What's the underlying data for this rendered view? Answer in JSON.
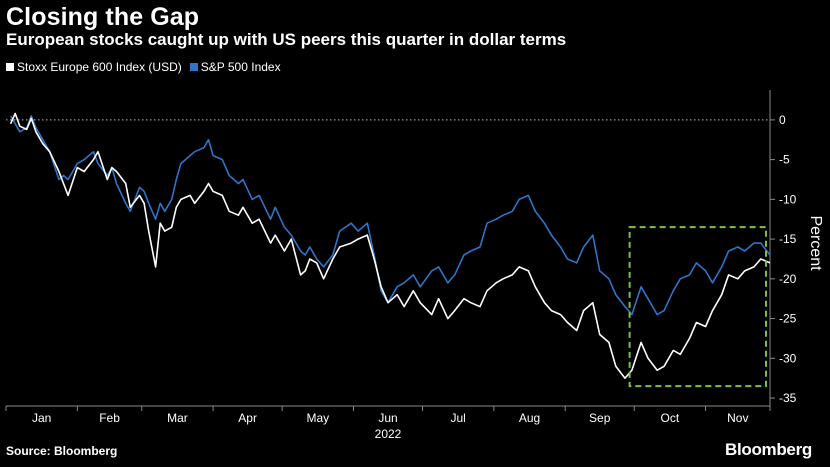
{
  "header": {
    "title": "Closing the Gap",
    "subtitle": "European stocks caught up with US peers this quarter in dollar terms"
  },
  "footer": {
    "source": "Source: Bloomberg",
    "brand": "Bloomberg"
  },
  "colors": {
    "background": "#000000",
    "stoxx": "#ffffff",
    "sp500": "#2f74c8",
    "highlight_box": "#7cc242",
    "axis": "#8a8a8a"
  },
  "chart_data": {
    "type": "line",
    "title": "Closing the Gap",
    "subtitle": "European stocks caught up with US peers this quarter in dollar terms",
    "xlabel": "2022",
    "ylabel": "Percent",
    "x_tick_labels": [
      "Jan",
      "Feb",
      "Mar",
      "Apr",
      "May",
      "Jun",
      "Jul",
      "Aug",
      "Sep",
      "Oct",
      "Nov"
    ],
    "y_ticks": [
      0,
      -5,
      -10,
      -15,
      -20,
      -25,
      -30,
      -35
    ],
    "ylim": [
      -36,
      2.5
    ],
    "xlim": [
      "2022-01-01",
      "2022-11-29"
    ],
    "y_axis_position": "right",
    "grid": false,
    "zero_line": "dotted",
    "legend_position": "top-left",
    "highlight_box": {
      "x_range": [
        "2022-09-29",
        "2022-11-29"
      ],
      "y_range": [
        -33.5,
        -13.5
      ]
    },
    "series": [
      {
        "name": "Stoxx Europe 600 Index (USD)",
        "color": "#ffffff",
        "points": [
          [
            "2022-01-03",
            -0.5
          ],
          [
            "2022-01-05",
            0.8
          ],
          [
            "2022-01-07",
            -0.8
          ],
          [
            "2022-01-10",
            -1.2
          ],
          [
            "2022-01-12",
            0.2
          ],
          [
            "2022-01-14",
            -1.5
          ],
          [
            "2022-01-17",
            -3.0
          ],
          [
            "2022-01-20",
            -4.0
          ],
          [
            "2022-01-24",
            -6.5
          ],
          [
            "2022-01-26",
            -8.0
          ],
          [
            "2022-01-28",
            -9.5
          ],
          [
            "2022-02-01",
            -6.0
          ],
          [
            "2022-02-04",
            -6.5
          ],
          [
            "2022-02-08",
            -5.0
          ],
          [
            "2022-02-10",
            -4.0
          ],
          [
            "2022-02-14",
            -7.5
          ],
          [
            "2022-02-16",
            -6.0
          ],
          [
            "2022-02-18",
            -6.5
          ],
          [
            "2022-02-22",
            -8.0
          ],
          [
            "2022-02-24",
            -11.0
          ],
          [
            "2022-02-28",
            -9.5
          ],
          [
            "2022-03-02",
            -10.5
          ],
          [
            "2022-03-04",
            -14.0
          ],
          [
            "2022-03-07",
            -18.5
          ],
          [
            "2022-03-09",
            -13.0
          ],
          [
            "2022-03-11",
            -14.0
          ],
          [
            "2022-03-14",
            -13.5
          ],
          [
            "2022-03-16",
            -11.0
          ],
          [
            "2022-03-18",
            -10.0
          ],
          [
            "2022-03-22",
            -9.5
          ],
          [
            "2022-03-24",
            -10.5
          ],
          [
            "2022-03-28",
            -9.0
          ],
          [
            "2022-03-30",
            -8.0
          ],
          [
            "2022-04-01",
            -9.0
          ],
          [
            "2022-04-05",
            -9.5
          ],
          [
            "2022-04-08",
            -11.5
          ],
          [
            "2022-04-12",
            -12.0
          ],
          [
            "2022-04-14",
            -11.0
          ],
          [
            "2022-04-18",
            -13.0
          ],
          [
            "2022-04-21",
            -12.5
          ],
          [
            "2022-04-26",
            -15.5
          ],
          [
            "2022-04-28",
            -14.5
          ],
          [
            "2022-05-02",
            -16.5
          ],
          [
            "2022-05-05",
            -15.0
          ],
          [
            "2022-05-09",
            -19.5
          ],
          [
            "2022-05-11",
            -19.0
          ],
          [
            "2022-05-13",
            -17.5
          ],
          [
            "2022-05-16",
            -18.0
          ],
          [
            "2022-05-19",
            -20.0
          ],
          [
            "2022-05-23",
            -17.5
          ],
          [
            "2022-05-26",
            -16.0
          ],
          [
            "2022-05-31",
            -15.5
          ],
          [
            "2022-06-03",
            -15.0
          ],
          [
            "2022-06-07",
            -14.5
          ],
          [
            "2022-06-10",
            -17.5
          ],
          [
            "2022-06-13",
            -21.0
          ],
          [
            "2022-06-16",
            -23.0
          ],
          [
            "2022-06-20",
            -22.0
          ],
          [
            "2022-06-23",
            -23.5
          ],
          [
            "2022-06-27",
            -21.5
          ],
          [
            "2022-06-30",
            -23.0
          ],
          [
            "2022-07-05",
            -24.5
          ],
          [
            "2022-07-08",
            -22.5
          ],
          [
            "2022-07-12",
            -25.0
          ],
          [
            "2022-07-15",
            -24.0
          ],
          [
            "2022-07-19",
            -22.5
          ],
          [
            "2022-07-22",
            -23.0
          ],
          [
            "2022-07-26",
            -23.5
          ],
          [
            "2022-07-29",
            -21.5
          ],
          [
            "2022-08-02",
            -20.5
          ],
          [
            "2022-08-05",
            -20.0
          ],
          [
            "2022-08-09",
            -19.5
          ],
          [
            "2022-08-12",
            -18.5
          ],
          [
            "2022-08-16",
            -19.0
          ],
          [
            "2022-08-19",
            -21.0
          ],
          [
            "2022-08-23",
            -23.0
          ],
          [
            "2022-08-26",
            -24.0
          ],
          [
            "2022-08-30",
            -24.5
          ],
          [
            "2022-09-02",
            -25.5
          ],
          [
            "2022-09-06",
            -26.5
          ],
          [
            "2022-09-09",
            -24.0
          ],
          [
            "2022-09-13",
            -23.0
          ],
          [
            "2022-09-16",
            -27.0
          ],
          [
            "2022-09-20",
            -28.0
          ],
          [
            "2022-09-23",
            -31.0
          ],
          [
            "2022-09-27",
            -32.5
          ],
          [
            "2022-09-30",
            -31.5
          ],
          [
            "2022-10-04",
            -28.0
          ],
          [
            "2022-10-07",
            -30.0
          ],
          [
            "2022-10-11",
            -31.5
          ],
          [
            "2022-10-14",
            -31.0
          ],
          [
            "2022-10-18",
            -29.0
          ],
          [
            "2022-10-21",
            -29.5
          ],
          [
            "2022-10-25",
            -27.5
          ],
          [
            "2022-10-28",
            -25.5
          ],
          [
            "2022-11-01",
            -26.0
          ],
          [
            "2022-11-04",
            -24.0
          ],
          [
            "2022-11-08",
            -22.0
          ],
          [
            "2022-11-11",
            -19.5
          ],
          [
            "2022-11-15",
            -20.0
          ],
          [
            "2022-11-18",
            -19.0
          ],
          [
            "2022-11-22",
            -18.5
          ],
          [
            "2022-11-25",
            -17.5
          ],
          [
            "2022-11-29",
            -18.0
          ]
        ]
      },
      {
        "name": "S&P 500 Index",
        "color": "#2f74c8",
        "points": [
          [
            "2022-01-03",
            0.5
          ],
          [
            "2022-01-05",
            -0.5
          ],
          [
            "2022-01-07",
            -1.5
          ],
          [
            "2022-01-10",
            -1.0
          ],
          [
            "2022-01-12",
            0.5
          ],
          [
            "2022-01-14",
            -1.0
          ],
          [
            "2022-01-17",
            -2.5
          ],
          [
            "2022-01-20",
            -4.0
          ],
          [
            "2022-01-24",
            -7.5
          ],
          [
            "2022-01-26",
            -7.0
          ],
          [
            "2022-01-28",
            -7.5
          ],
          [
            "2022-02-01",
            -5.5
          ],
          [
            "2022-02-04",
            -5.0
          ],
          [
            "2022-02-08",
            -4.0
          ],
          [
            "2022-02-10",
            -5.5
          ],
          [
            "2022-02-14",
            -7.0
          ],
          [
            "2022-02-16",
            -6.0
          ],
          [
            "2022-02-18",
            -8.0
          ],
          [
            "2022-02-22",
            -10.5
          ],
          [
            "2022-02-24",
            -11.5
          ],
          [
            "2022-02-28",
            -8.5
          ],
          [
            "2022-03-02",
            -9.0
          ],
          [
            "2022-03-04",
            -10.5
          ],
          [
            "2022-03-07",
            -12.5
          ],
          [
            "2022-03-09",
            -10.5
          ],
          [
            "2022-03-11",
            -11.5
          ],
          [
            "2022-03-14",
            -10.0
          ],
          [
            "2022-03-16",
            -7.5
          ],
          [
            "2022-03-18",
            -5.5
          ],
          [
            "2022-03-22",
            -4.5
          ],
          [
            "2022-03-24",
            -4.0
          ],
          [
            "2022-03-28",
            -3.5
          ],
          [
            "2022-03-30",
            -2.5
          ],
          [
            "2022-04-01",
            -4.5
          ],
          [
            "2022-04-05",
            -5.0
          ],
          [
            "2022-04-08",
            -7.0
          ],
          [
            "2022-04-12",
            -8.0
          ],
          [
            "2022-04-14",
            -7.5
          ],
          [
            "2022-04-18",
            -10.0
          ],
          [
            "2022-04-21",
            -9.5
          ],
          [
            "2022-04-26",
            -12.5
          ],
          [
            "2022-04-28",
            -11.0
          ],
          [
            "2022-05-02",
            -13.5
          ],
          [
            "2022-05-05",
            -14.5
          ],
          [
            "2022-05-09",
            -16.5
          ],
          [
            "2022-05-11",
            -17.0
          ],
          [
            "2022-05-13",
            -16.0
          ],
          [
            "2022-05-16",
            -17.5
          ],
          [
            "2022-05-19",
            -18.5
          ],
          [
            "2022-05-23",
            -17.0
          ],
          [
            "2022-05-26",
            -14.0
          ],
          [
            "2022-05-31",
            -13.0
          ],
          [
            "2022-06-03",
            -14.0
          ],
          [
            "2022-06-07",
            -13.0
          ],
          [
            "2022-06-10",
            -17.0
          ],
          [
            "2022-06-13",
            -21.5
          ],
          [
            "2022-06-16",
            -23.0
          ],
          [
            "2022-06-20",
            -21.0
          ],
          [
            "2022-06-23",
            -20.5
          ],
          [
            "2022-06-27",
            -19.5
          ],
          [
            "2022-06-30",
            -21.0
          ],
          [
            "2022-07-05",
            -19.0
          ],
          [
            "2022-07-08",
            -18.5
          ],
          [
            "2022-07-12",
            -20.5
          ],
          [
            "2022-07-15",
            -19.5
          ],
          [
            "2022-07-19",
            -17.0
          ],
          [
            "2022-07-22",
            -16.5
          ],
          [
            "2022-07-26",
            -16.0
          ],
          [
            "2022-07-29",
            -13.0
          ],
          [
            "2022-08-02",
            -12.5
          ],
          [
            "2022-08-05",
            -12.0
          ],
          [
            "2022-08-09",
            -11.5
          ],
          [
            "2022-08-12",
            -10.0
          ],
          [
            "2022-08-16",
            -9.5
          ],
          [
            "2022-08-19",
            -11.5
          ],
          [
            "2022-08-23",
            -13.0
          ],
          [
            "2022-08-26",
            -14.5
          ],
          [
            "2022-08-30",
            -16.0
          ],
          [
            "2022-09-02",
            -17.5
          ],
          [
            "2022-09-06",
            -18.0
          ],
          [
            "2022-09-09",
            -16.0
          ],
          [
            "2022-09-13",
            -14.5
          ],
          [
            "2022-09-16",
            -19.0
          ],
          [
            "2022-09-20",
            -20.0
          ],
          [
            "2022-09-23",
            -22.0
          ],
          [
            "2022-09-27",
            -23.5
          ],
          [
            "2022-09-30",
            -24.5
          ],
          [
            "2022-10-04",
            -21.0
          ],
          [
            "2022-10-07",
            -22.5
          ],
          [
            "2022-10-11",
            -24.5
          ],
          [
            "2022-10-14",
            -24.0
          ],
          [
            "2022-10-18",
            -21.5
          ],
          [
            "2022-10-21",
            -20.0
          ],
          [
            "2022-10-25",
            -19.5
          ],
          [
            "2022-10-28",
            -18.0
          ],
          [
            "2022-11-01",
            -19.0
          ],
          [
            "2022-11-04",
            -20.5
          ],
          [
            "2022-11-08",
            -18.5
          ],
          [
            "2022-11-11",
            -16.5
          ],
          [
            "2022-11-15",
            -16.0
          ],
          [
            "2022-11-18",
            -16.5
          ],
          [
            "2022-11-22",
            -15.5
          ],
          [
            "2022-11-25",
            -15.5
          ],
          [
            "2022-11-29",
            -17.0
          ]
        ]
      }
    ]
  }
}
